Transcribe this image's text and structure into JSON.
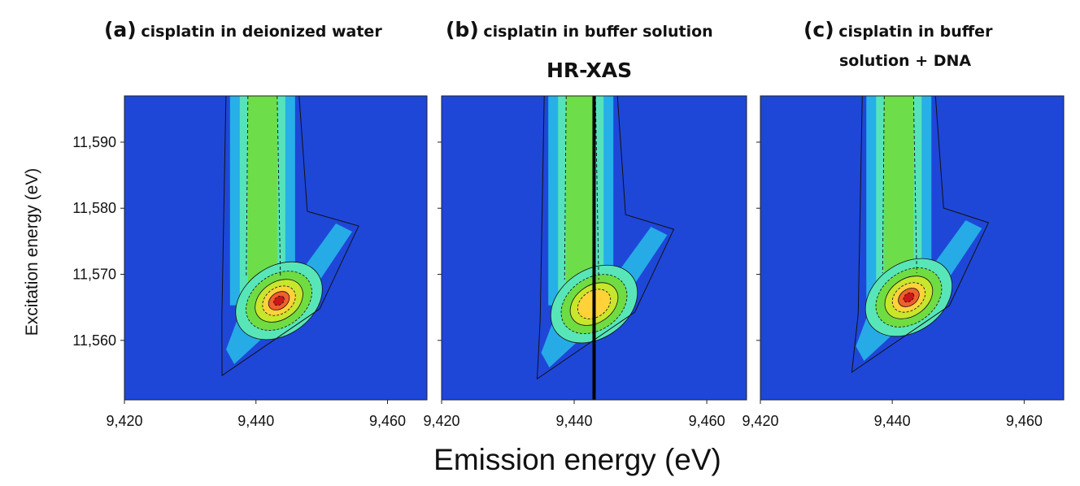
{
  "figure": {
    "hr_xas_label": "HR-XAS",
    "xlabel": "Emission energy (eV)",
    "ylabel": "Excitation energy (eV)"
  },
  "panels": [
    {
      "letter": "(a)",
      "title": "cisplatin in deionized water",
      "title_line2": ""
    },
    {
      "letter": "(b)",
      "title": "cisplatin in buffer solution",
      "title_line2": ""
    },
    {
      "letter": "(c)",
      "title": "cisplatin in buffer",
      "title_line2": "solution + DNA"
    }
  ],
  "chart_data": [
    {
      "type": "heatmap",
      "panel": "(a)",
      "title": "cisplatin in deionized water",
      "xlabel": "Emission energy (eV)",
      "ylabel": "Excitation energy (eV)",
      "xlim": [
        9420,
        9466
      ],
      "ylim": [
        11551,
        11597
      ],
      "x_ticks": [
        {
          "value": 9420,
          "label": "9,420"
        },
        {
          "value": 9440,
          "label": "9,440"
        },
        {
          "value": 9460,
          "label": "9,460"
        }
      ],
      "y_ticks": [
        {
          "value": 11560,
          "label": "11,560"
        },
        {
          "value": 11570,
          "label": "11,570"
        },
        {
          "value": 11580,
          "label": "11,580"
        },
        {
          "value": 11590,
          "label": "11,590"
        }
      ],
      "peak": {
        "x": 9443.5,
        "y": 11566,
        "intensity": 1.0
      },
      "vertical_band": {
        "x": 9441,
        "y_start": 11569,
        "y_end": 11597,
        "intensity": 0.55
      },
      "colormap": [
        "#1e47d8",
        "#27b6e8",
        "#58e6b8",
        "#6fdc42",
        "#c8e62c",
        "#ffd23a",
        "#f25e2e",
        "#c81818"
      ]
    },
    {
      "type": "heatmap",
      "panel": "(b)",
      "title": "cisplatin in buffer solution",
      "xlabel": "Emission energy (eV)",
      "ylabel": "Excitation energy (eV)",
      "xlim": [
        9420,
        9466
      ],
      "ylim": [
        11551,
        11597
      ],
      "x_ticks": [
        {
          "value": 9420,
          "label": "9,420"
        },
        {
          "value": 9440,
          "label": "9,440"
        },
        {
          "value": 9460,
          "label": "9,460"
        }
      ],
      "y_ticks": [
        {
          "value": 11560,
          "label": "11,560"
        },
        {
          "value": 11570,
          "label": "11,570"
        },
        {
          "value": 11580,
          "label": "11,580"
        },
        {
          "value": 11590,
          "label": "11,590"
        }
      ],
      "peak": {
        "x": 9443,
        "y": 11565.5,
        "intensity": 0.72
      },
      "vertical_band": {
        "x": 9441,
        "y_start": 11569,
        "y_end": 11597,
        "intensity": 0.58
      },
      "hr_xas_cut_x": 9443,
      "colormap": [
        "#1e47d8",
        "#27b6e8",
        "#58e6b8",
        "#6fdc42",
        "#c8e62c",
        "#ffd23a",
        "#f25e2e",
        "#c81818"
      ]
    },
    {
      "type": "heatmap",
      "panel": "(c)",
      "title": "cisplatin in buffer solution + DNA",
      "xlabel": "Emission energy (eV)",
      "ylabel": "Excitation energy (eV)",
      "xlim": [
        9420,
        9466
      ],
      "ylim": [
        11551,
        11597
      ],
      "x_ticks": [
        {
          "value": 9420,
          "label": "9,420"
        },
        {
          "value": 9440,
          "label": "9,440"
        },
        {
          "value": 9460,
          "label": "9,460"
        }
      ],
      "y_ticks": [
        {
          "value": 11560,
          "label": "11,560"
        },
        {
          "value": 11570,
          "label": "11,570"
        },
        {
          "value": 11580,
          "label": "11,580"
        },
        {
          "value": 11590,
          "label": "11,590"
        }
      ],
      "peak": {
        "x": 9442.5,
        "y": 11566.5,
        "intensity": 1.0
      },
      "vertical_band": {
        "x": 9441,
        "y_start": 11569,
        "y_end": 11597,
        "intensity": 0.55
      },
      "colormap": [
        "#1e47d8",
        "#27b6e8",
        "#58e6b8",
        "#6fdc42",
        "#c8e62c",
        "#ffd23a",
        "#f25e2e",
        "#c81818"
      ]
    }
  ]
}
